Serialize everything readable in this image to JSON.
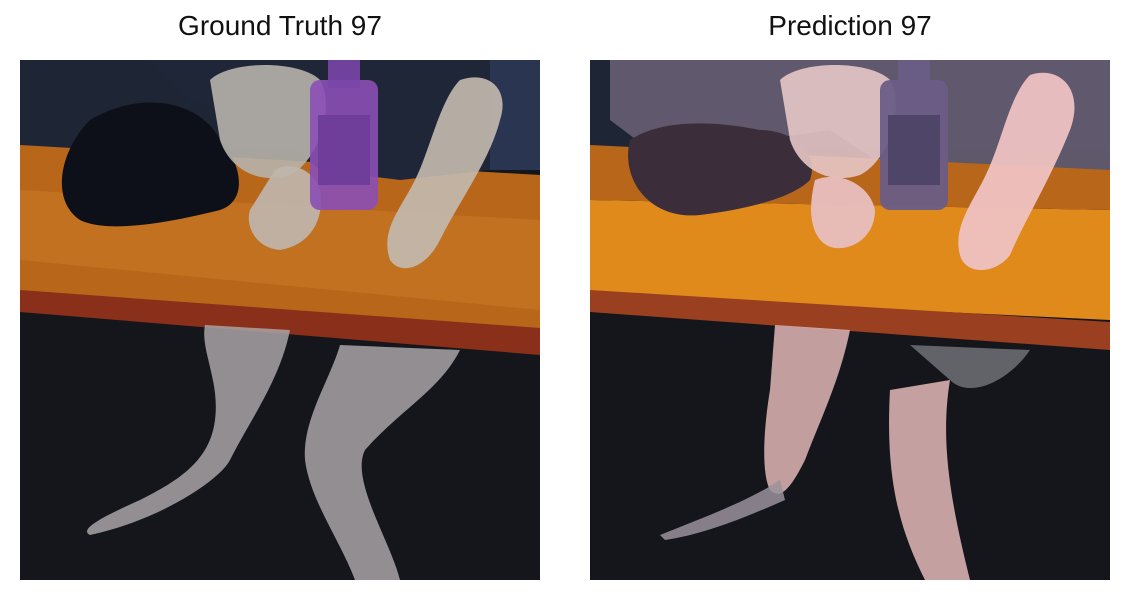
{
  "figure": {
    "panels": [
      {
        "title": "Ground Truth 97"
      },
      {
        "title": "Prediction 97"
      }
    ]
  }
}
